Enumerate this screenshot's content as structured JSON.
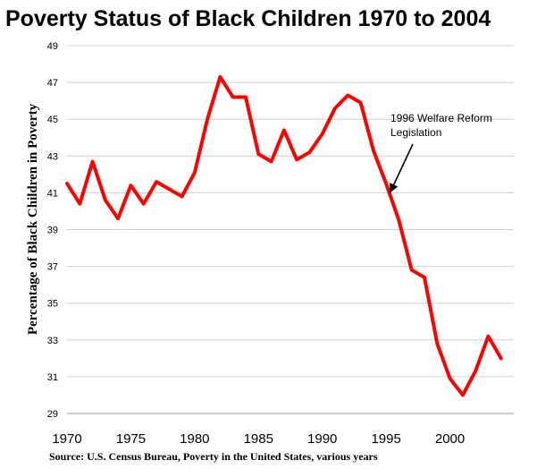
{
  "chart_data": {
    "type": "line",
    "title": "Poverty Status of Black Children 1970 to 2004",
    "ylabel": "Percentage of Black Children in Poverty",
    "xlabel": "",
    "source": "Source: U.S. Census Bureau, Poverty in the United States, various years",
    "xlim": [
      1970,
      2005
    ],
    "ylim": [
      29,
      49
    ],
    "x_ticks": [
      1970,
      1975,
      1980,
      1985,
      1990,
      1995,
      2000
    ],
    "x_tick_labels": [
      "1970",
      "1975",
      "1980",
      "1985",
      "1990",
      "1995",
      "2000"
    ],
    "y_ticks": [
      29,
      31,
      33,
      35,
      37,
      39,
      41,
      43,
      45,
      47,
      49
    ],
    "y_tick_labels": [
      "29",
      "31",
      "33",
      "35",
      "37",
      "39",
      "41",
      "43",
      "45",
      "47",
      "49"
    ],
    "grid": "horizontal",
    "line_color": "#ff0000",
    "series": [
      {
        "x": [
          1970,
          1971,
          1972,
          1973,
          1974,
          1975,
          1976,
          1977,
          1978,
          1979,
          1980,
          1981,
          1982,
          1983,
          1984,
          1985,
          1986,
          1987,
          1988,
          1989,
          1990,
          1991,
          1992,
          1993,
          1994,
          1995,
          1996,
          1997,
          1998,
          1999,
          2000,
          2001,
          2002,
          2003,
          2004
        ],
        "values": [
          41.5,
          40.4,
          42.7,
          40.6,
          39.6,
          41.4,
          40.4,
          41.6,
          41.2,
          40.8,
          42.1,
          45.0,
          47.3,
          46.2,
          46.2,
          43.1,
          42.7,
          44.4,
          42.8,
          43.2,
          44.2,
          45.6,
          46.3,
          45.9,
          43.3,
          41.5,
          39.5,
          36.8,
          36.4,
          32.8,
          30.9,
          30.0,
          31.3,
          33.2,
          32.0
        ]
      }
    ],
    "annotation": {
      "lines": [
        "1996 Welfare Reform",
        "Legislation"
      ],
      "target_x": 1995.3,
      "target_y": 41.0
    }
  }
}
